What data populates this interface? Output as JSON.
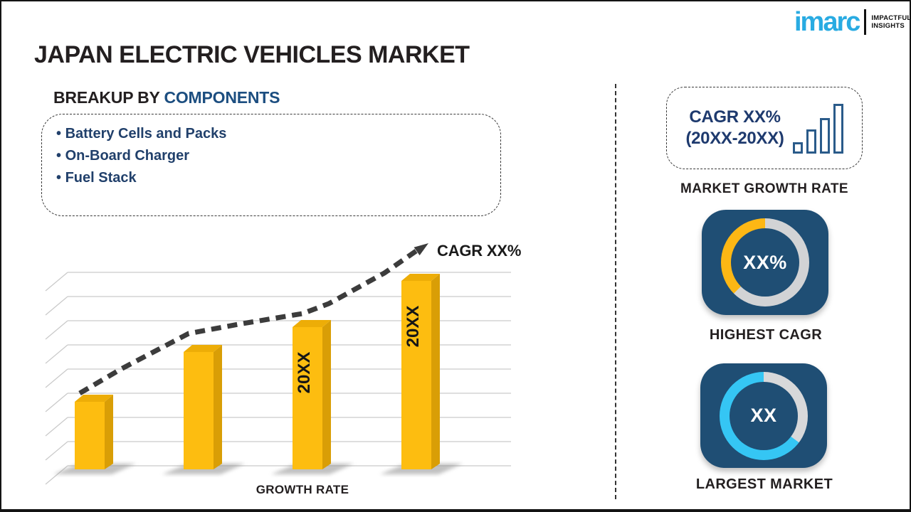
{
  "page": {
    "title": "JAPAN ELECTRIC VEHICLES MARKET"
  },
  "logo": {
    "brand": "imarc",
    "tagline_line1": "IMPACTFUL",
    "tagline_line2": "INSIGHTS",
    "brand_color": "#29ABE2"
  },
  "breakup": {
    "heading_prefix": "BREAKUP BY ",
    "heading_highlight": "COMPONENTS",
    "items": [
      "Battery Cells and Packs",
      "On-Board Charger",
      "Fuel Stack"
    ]
  },
  "chart_data": {
    "type": "bar",
    "title": "",
    "xlabel": "GROWTH RATE",
    "ylabel": "",
    "categories": [
      "",
      "",
      "20XX",
      "20XX"
    ],
    "values": [
      19,
      33,
      40,
      53
    ],
    "value_note": "relative bar heights in arbitrary units; chart is a placeholder with no numeric axis",
    "bar_color": "#FDBD10",
    "grid": "on",
    "gridline_count": 9,
    "trend_label": "CAGR XX%",
    "trend_style": "rising dashed arrow",
    "legend": "none"
  },
  "sidebar": {
    "growth_box": {
      "line1": "CAGR XX%",
      "line2": "(20XX-20XX)",
      "icon": "ascending-bars-icon"
    },
    "growth_label": "MARKET GROWTH RATE",
    "highest_cagr": {
      "value": "XX%",
      "label": "HIGHEST CAGR",
      "accent": "#FDB714",
      "ring_base": "#D2D3D5",
      "arc_deg": 135
    },
    "largest_market": {
      "value": "XX",
      "label": "LARGEST MARKET",
      "accent": "#35C6F4",
      "ring_base": "#D7D8DA",
      "arc_deg": 233
    }
  },
  "colors": {
    "tile_navy": "#1F4E74",
    "heading_navy": "#1C4E80",
    "bullet_navy": "#21406B",
    "text_black": "#231F20",
    "bar_front": "#FDBD10",
    "bar_top": "#EDAD07",
    "bar_side": "#D99E06",
    "gridline": "#C9C9C9",
    "trend": "#3C3C3C"
  }
}
